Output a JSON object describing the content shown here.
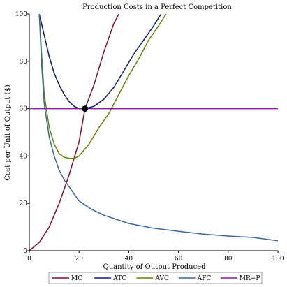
{
  "chart_data": {
    "type": "line",
    "title": "Production Costs in a Perfect Competition",
    "xlabel": "Quantity of Output Produced",
    "ylabel": "Cost per Unit of Output ($)",
    "xlim": [
      0,
      100
    ],
    "ylim": [
      0,
      100
    ],
    "xticks": [
      0,
      20,
      40,
      60,
      80,
      100
    ],
    "yticks": [
      0,
      20,
      40,
      60,
      80,
      100
    ],
    "grid": false,
    "legend_position": "bottom",
    "series": [
      {
        "name": "MC",
        "color": "#8b0a2e",
        "points": [
          [
            0,
            0
          ],
          [
            4,
            3.5
          ],
          [
            8,
            10
          ],
          [
            12,
            20
          ],
          [
            16,
            32
          ],
          [
            20,
            46
          ],
          [
            22.4,
            60
          ],
          [
            26,
            70
          ],
          [
            30,
            84
          ],
          [
            34,
            96
          ],
          [
            36,
            100
          ]
        ]
      },
      {
        "name": "ATC",
        "color": "#0a1a80",
        "points": [
          [
            4,
            100
          ],
          [
            6,
            91
          ],
          [
            8,
            82
          ],
          [
            10,
            75
          ],
          [
            12,
            70
          ],
          [
            14,
            66
          ],
          [
            16,
            63
          ],
          [
            18,
            61
          ],
          [
            20,
            60
          ],
          [
            22.4,
            60
          ],
          [
            26,
            61
          ],
          [
            30,
            64
          ],
          [
            34,
            69
          ],
          [
            38,
            76
          ],
          [
            42,
            83
          ],
          [
            46,
            89
          ],
          [
            50,
            95
          ],
          [
            53,
            100
          ]
        ]
      },
      {
        "name": "AVC",
        "color": "#5a8a00",
        "points": [
          [
            4,
            100
          ],
          [
            5,
            82
          ],
          [
            6,
            66
          ],
          [
            8,
            52
          ],
          [
            10,
            45
          ],
          [
            12,
            41
          ],
          [
            14,
            39.5
          ],
          [
            16,
            39
          ],
          [
            18,
            39
          ],
          [
            20,
            40
          ],
          [
            24,
            45
          ],
          [
            28,
            52
          ],
          [
            32,
            58
          ],
          [
            36,
            66
          ],
          [
            40,
            74
          ],
          [
            44,
            81
          ],
          [
            48,
            89
          ],
          [
            52,
            95
          ],
          [
            55,
            100
          ]
        ]
      },
      {
        "name": "AFC",
        "color": "#3a66a0",
        "points": [
          [
            4,
            100
          ],
          [
            5,
            78
          ],
          [
            6,
            62
          ],
          [
            8,
            48
          ],
          [
            10,
            40
          ],
          [
            12,
            34
          ],
          [
            14,
            30
          ],
          [
            16,
            27
          ],
          [
            20,
            21
          ],
          [
            25,
            17.5
          ],
          [
            30,
            15
          ],
          [
            40,
            11.5
          ],
          [
            50,
            9.5
          ],
          [
            60,
            8.2
          ],
          [
            70,
            7
          ],
          [
            80,
            6.2
          ],
          [
            90,
            5.6
          ],
          [
            100,
            4.2
          ]
        ]
      },
      {
        "name": "MR=P",
        "color": "#8a1aa0",
        "points": [
          [
            0,
            60
          ],
          [
            100,
            60
          ]
        ]
      }
    ],
    "highlight_point": {
      "x": 22.4,
      "y": 60,
      "color": "#000000"
    }
  }
}
